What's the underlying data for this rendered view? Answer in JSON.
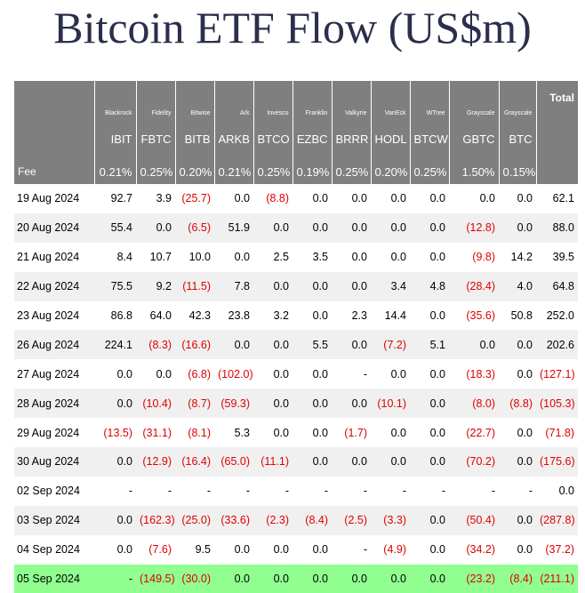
{
  "title": "Bitcoin ETF Flow (US$m)",
  "colors": {
    "header_bg": "#7f7f7f",
    "negative": "#e00000",
    "highlight_row": "#90ff90",
    "title": "#2b2f4c"
  },
  "header": {
    "issuers": [
      "Blackrock",
      "Fidelity",
      "Bitwise",
      "Ark",
      "Invesco",
      "Franklin",
      "Valkyrie",
      "VanEck",
      "WTree",
      "Grayscale",
      "Grayscale"
    ],
    "total_label": "Total",
    "tickers": [
      "IBIT",
      "FBTC",
      "BITB",
      "ARKB",
      "BTCO",
      "EZBC",
      "BRRR",
      "HODL",
      "BTCW",
      "GBTC",
      "BTC"
    ],
    "fee_label": "Fee",
    "fees": [
      "0.21%",
      "0.25%",
      "0.20%",
      "0.21%",
      "0.25%",
      "0.19%",
      "0.25%",
      "0.20%",
      "0.25%",
      "1.50%",
      "0.15%"
    ]
  },
  "rows": [
    {
      "date": "19 Aug 2024",
      "values": [
        "92.7",
        "3.9",
        "(25.7)",
        "0.0",
        "(8.8)",
        "0.0",
        "0.0",
        "0.0",
        "0.0",
        "0.0",
        "0.0"
      ],
      "total": "62.1"
    },
    {
      "date": "20 Aug 2024",
      "values": [
        "55.4",
        "0.0",
        "(6.5)",
        "51.9",
        "0.0",
        "0.0",
        "0.0",
        "0.0",
        "0.0",
        "(12.8)",
        "0.0"
      ],
      "total": "88.0"
    },
    {
      "date": "21 Aug 2024",
      "values": [
        "8.4",
        "10.7",
        "10.0",
        "0.0",
        "2.5",
        "3.5",
        "0.0",
        "0.0",
        "0.0",
        "(9.8)",
        "14.2"
      ],
      "total": "39.5"
    },
    {
      "date": "22 Aug 2024",
      "values": [
        "75.5",
        "9.2",
        "(11.5)",
        "7.8",
        "0.0",
        "0.0",
        "0.0",
        "3.4",
        "4.8",
        "(28.4)",
        "4.0"
      ],
      "total": "64.8"
    },
    {
      "date": "23 Aug 2024",
      "values": [
        "86.8",
        "64.0",
        "42.3",
        "23.8",
        "3.2",
        "0.0",
        "2.3",
        "14.4",
        "0.0",
        "(35.6)",
        "50.8"
      ],
      "total": "252.0"
    },
    {
      "date": "26 Aug 2024",
      "values": [
        "224.1",
        "(8.3)",
        "(16.6)",
        "0.0",
        "0.0",
        "5.5",
        "0.0",
        "(7.2)",
        "5.1",
        "0.0",
        "0.0"
      ],
      "total": "202.6"
    },
    {
      "date": "27 Aug 2024",
      "values": [
        "0.0",
        "0.0",
        "(6.8)",
        "(102.0)",
        "0.0",
        "0.0",
        "-",
        "0.0",
        "0.0",
        "(18.3)",
        "0.0"
      ],
      "total": "(127.1)"
    },
    {
      "date": "28 Aug 2024",
      "values": [
        "0.0",
        "(10.4)",
        "(8.7)",
        "(59.3)",
        "0.0",
        "0.0",
        "0.0",
        "(10.1)",
        "0.0",
        "(8.0)",
        "(8.8)"
      ],
      "total": "(105.3)"
    },
    {
      "date": "29 Aug 2024",
      "values": [
        "(13.5)",
        "(31.1)",
        "(8.1)",
        "5.3",
        "0.0",
        "0.0",
        "(1.7)",
        "0.0",
        "0.0",
        "(22.7)",
        "0.0"
      ],
      "total": "(71.8)"
    },
    {
      "date": "30 Aug 2024",
      "values": [
        "0.0",
        "(12.9)",
        "(16.4)",
        "(65.0)",
        "(11.1)",
        "0.0",
        "0.0",
        "0.0",
        "0.0",
        "(70.2)",
        "0.0"
      ],
      "total": "(175.6)"
    },
    {
      "date": "02 Sep 2024",
      "values": [
        "-",
        "-",
        "-",
        "-",
        "-",
        "-",
        "-",
        "-",
        "-",
        "-",
        "-"
      ],
      "total": "0.0"
    },
    {
      "date": "03 Sep 2024",
      "values": [
        "0.0",
        "(162.3)",
        "(25.0)",
        "(33.6)",
        "(2.3)",
        "(8.4)",
        "(2.5)",
        "(3.3)",
        "0.0",
        "(50.4)",
        "0.0"
      ],
      "total": "(287.8)"
    },
    {
      "date": "04 Sep 2024",
      "values": [
        "0.0",
        "(7.6)",
        "9.5",
        "0.0",
        "0.0",
        "0.0",
        "-",
        "(4.9)",
        "0.0",
        "(34.2)",
        "0.0"
      ],
      "total": "(37.2)"
    },
    {
      "date": "05 Sep 2024",
      "values": [
        "-",
        "(149.5)",
        "(30.0)",
        "0.0",
        "0.0",
        "0.0",
        "0.0",
        "0.0",
        "0.0",
        "(23.2)",
        "(8.4)"
      ],
      "total": "(211.1)"
    }
  ]
}
